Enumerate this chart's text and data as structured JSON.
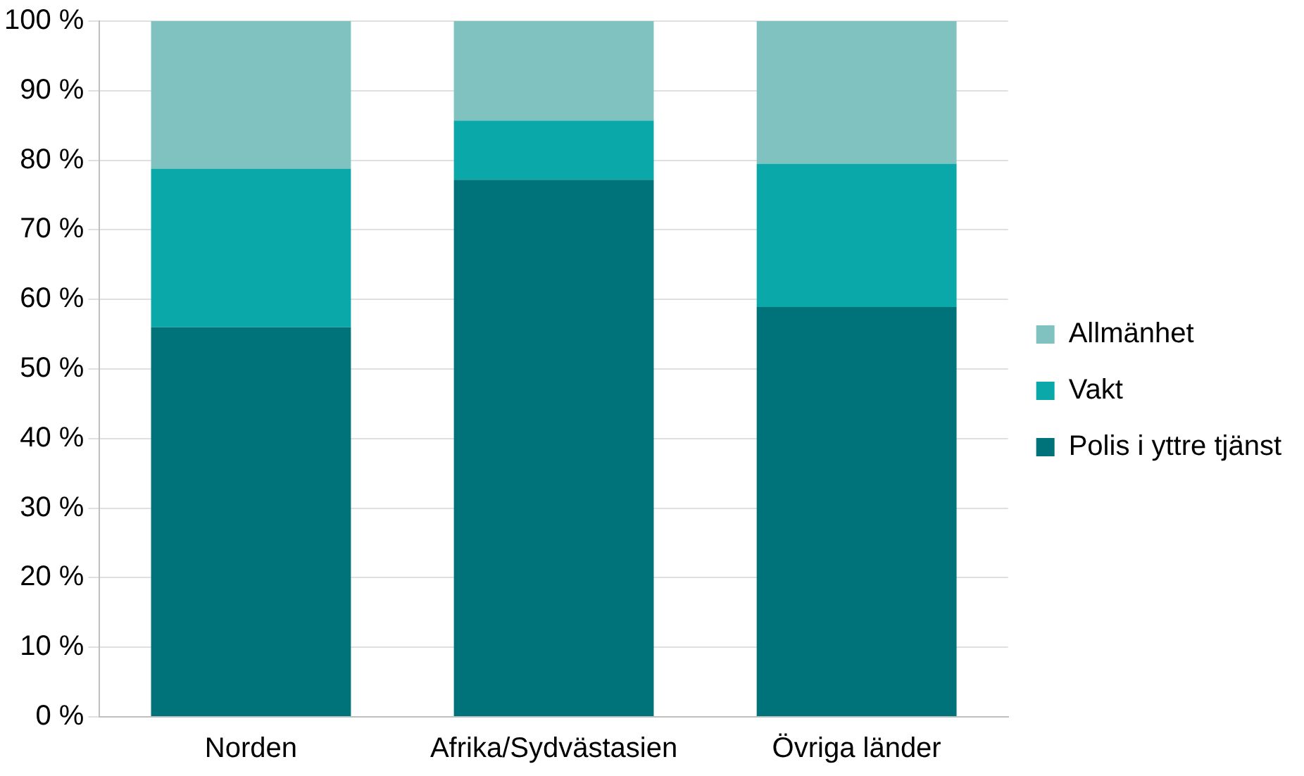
{
  "chart_data": {
    "type": "bar",
    "stacked": true,
    "categories": [
      "Norden",
      "Afrika/Sydvästasien",
      "Övriga länder"
    ],
    "series": [
      {
        "name": "Polis i yttre tjänst",
        "color": "#00737a",
        "values": [
          56.0,
          77.2,
          58.9
        ]
      },
      {
        "name": "Vakt",
        "color": "#0aa8a8",
        "values": [
          22.8,
          8.5,
          20.6
        ]
      },
      {
        "name": "Allmänhet",
        "color": "#80c2bf",
        "values": [
          21.2,
          14.3,
          20.5
        ]
      }
    ],
    "ylim": [
      0,
      100
    ],
    "yticks": [
      {
        "value": 0,
        "label": "0 %"
      },
      {
        "value": 10,
        "label": "10 %"
      },
      {
        "value": 20,
        "label": "20 %"
      },
      {
        "value": 30,
        "label": "30 %"
      },
      {
        "value": 40,
        "label": "40 %"
      },
      {
        "value": 50,
        "label": "50 %"
      },
      {
        "value": 60,
        "label": "60 %"
      },
      {
        "value": 70,
        "label": "70 %"
      },
      {
        "value": 80,
        "label": "80 %"
      },
      {
        "value": 90,
        "label": "90 %"
      },
      {
        "value": 100,
        "label": "100 %"
      }
    ],
    "grid": "y",
    "legend": "right"
  }
}
